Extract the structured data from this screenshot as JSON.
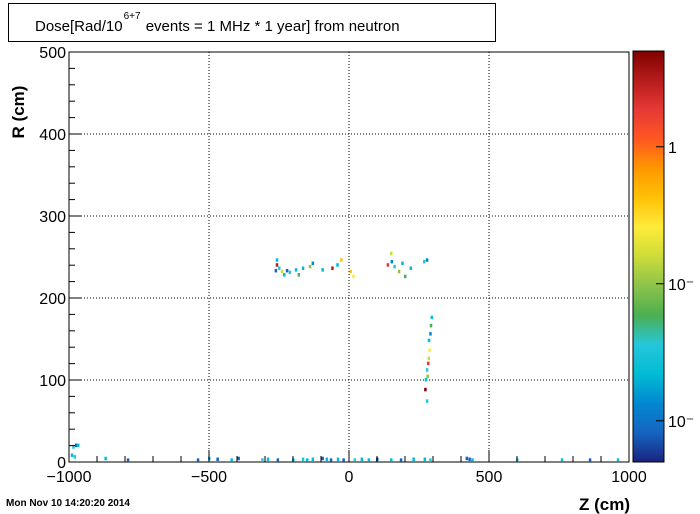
{
  "timestamp": "Mon Nov 10 14:20:20 2014",
  "chart_data": {
    "type": "heatmap",
    "title": {
      "before": "Dose[Rad/10",
      "superscript": "6+7",
      "after": " events = 1 MHz * 1 year] from neutron"
    },
    "xlabel": "Z (cm)",
    "ylabel": "R (cm)",
    "xlim": [
      -1000,
      1000
    ],
    "ylim": [
      0,
      500
    ],
    "x_ticks": [
      -1000,
      -500,
      0,
      500,
      1000
    ],
    "y_ticks": [
      0,
      100,
      200,
      300,
      400,
      500
    ],
    "grid": true,
    "z_scale": "log",
    "colorbar_labels": [
      "1",
      "10⁻",
      "10⁻"
    ],
    "colorbar_label_values": [
      1,
      0.1,
      0.01
    ],
    "palette": [
      "#1a237e",
      "#1565c0",
      "#0288d1",
      "#00bcd4",
      "#26c6da",
      "#4caf50",
      "#8bc34a",
      "#cddc39",
      "#ffeb3b",
      "#ffc107",
      "#ff9800",
      "#ff5722",
      "#e53935",
      "#b71c1c",
      "#7f0000"
    ],
    "cells": [
      {
        "z": -985,
        "r": 18,
        "v": 0.03
      },
      {
        "z": -975,
        "r": 20,
        "v": 0.01
      },
      {
        "z": -968,
        "r": 20,
        "v": 0.02
      },
      {
        "z": -990,
        "r": 8,
        "v": 0.02
      },
      {
        "z": -980,
        "r": 6,
        "v": 0.03
      },
      {
        "z": -870,
        "r": 4,
        "v": 0.02
      },
      {
        "z": -790,
        "r": 2,
        "v": 0.01
      },
      {
        "z": -540,
        "r": 2,
        "v": 0.01
      },
      {
        "z": -500,
        "r": 4,
        "v": 0.02
      },
      {
        "z": -470,
        "r": 3,
        "v": 0.01
      },
      {
        "z": -420,
        "r": 2,
        "v": 0.02
      },
      {
        "z": -395,
        "r": 4,
        "v": 0.01
      },
      {
        "z": -310,
        "r": 2,
        "v": 0.03
      },
      {
        "z": -290,
        "r": 3,
        "v": 0.02
      },
      {
        "z": -255,
        "r": 2,
        "v": 0.01
      },
      {
        "z": -200,
        "r": 2,
        "v": 0.02
      },
      {
        "z": -165,
        "r": 3,
        "v": 0.03
      },
      {
        "z": -150,
        "r": 2,
        "v": 0.02
      },
      {
        "z": -130,
        "r": 3,
        "v": 0.02
      },
      {
        "z": -95,
        "r": 4,
        "v": 0.01
      },
      {
        "z": -80,
        "r": 3,
        "v": 0.02
      },
      {
        "z": -65,
        "r": 2,
        "v": 0.01
      },
      {
        "z": -40,
        "r": 3,
        "v": 0.02
      },
      {
        "z": -20,
        "r": 2,
        "v": 0.01
      },
      {
        "z": 20,
        "r": 2,
        "v": 0.03
      },
      {
        "z": 45,
        "r": 3,
        "v": 0.02
      },
      {
        "z": 70,
        "r": 2,
        "v": 0.02
      },
      {
        "z": 100,
        "r": 3,
        "v": 0.01
      },
      {
        "z": 150,
        "r": 2,
        "v": 0.02
      },
      {
        "z": 185,
        "r": 2,
        "v": 0.01
      },
      {
        "z": 230,
        "r": 3,
        "v": 0.02
      },
      {
        "z": 270,
        "r": 3,
        "v": 0.02
      },
      {
        "z": 290,
        "r": 2,
        "v": 0.03
      },
      {
        "z": 420,
        "r": 4,
        "v": 0.01
      },
      {
        "z": 430,
        "r": 3,
        "v": 0.01
      },
      {
        "z": 440,
        "r": 2,
        "v": 0.02
      },
      {
        "z": 600,
        "r": 2,
        "v": 0.03
      },
      {
        "z": 760,
        "r": 2,
        "v": 0.02
      },
      {
        "z": 860,
        "r": 2,
        "v": 0.01
      },
      {
        "z": 960,
        "r": 2,
        "v": 0.02
      },
      {
        "z": -258,
        "r": 246,
        "v": 0.02
      },
      {
        "z": -258,
        "r": 240,
        "v": 3.0
      },
      {
        "z": -250,
        "r": 236,
        "v": 0.03
      },
      {
        "z": -262,
        "r": 233,
        "v": 0.01
      },
      {
        "z": -240,
        "r": 232,
        "v": 0.2
      },
      {
        "z": -232,
        "r": 228,
        "v": 0.02
      },
      {
        "z": -222,
        "r": 233,
        "v": 0.01
      },
      {
        "z": -212,
        "r": 231,
        "v": 0.03
      },
      {
        "z": -190,
        "r": 234,
        "v": 0.02
      },
      {
        "z": -180,
        "r": 228,
        "v": 0.05
      },
      {
        "z": -165,
        "r": 236,
        "v": 0.02
      },
      {
        "z": -140,
        "r": 238,
        "v": 0.1
      },
      {
        "z": -130,
        "r": 242,
        "v": 0.015
      },
      {
        "z": -95,
        "r": 234,
        "v": 0.02
      },
      {
        "z": -60,
        "r": 236,
        "v": 2.5
      },
      {
        "z": -42,
        "r": 240,
        "v": 0.02
      },
      {
        "z": -28,
        "r": 246,
        "v": 0.4
      },
      {
        "z": 5,
        "r": 232,
        "v": 0.5
      },
      {
        "z": 15,
        "r": 226,
        "v": 0.3
      },
      {
        "z": 138,
        "r": 240,
        "v": 1.8
      },
      {
        "z": 152,
        "r": 244,
        "v": 0.015
      },
      {
        "z": 150,
        "r": 254,
        "v": 0.15
      },
      {
        "z": 162,
        "r": 238,
        "v": 0.03
      },
      {
        "z": 178,
        "r": 232,
        "v": 0.1
      },
      {
        "z": 190,
        "r": 242,
        "v": 0.02
      },
      {
        "z": 200,
        "r": 226,
        "v": 0.05
      },
      {
        "z": 220,
        "r": 236,
        "v": 0.02
      },
      {
        "z": 268,
        "r": 244,
        "v": 0.03
      },
      {
        "z": 278,
        "r": 246,
        "v": 0.015
      },
      {
        "z": 295,
        "r": 176,
        "v": 0.02
      },
      {
        "z": 292,
        "r": 166,
        "v": 0.05
      },
      {
        "z": 290,
        "r": 156,
        "v": 0.015
      },
      {
        "z": 285,
        "r": 148,
        "v": 0.02
      },
      {
        "z": 287,
        "r": 136,
        "v": 0.3
      },
      {
        "z": 284,
        "r": 126,
        "v": 0.15
      },
      {
        "z": 282,
        "r": 120,
        "v": 1.5
      },
      {
        "z": 278,
        "r": 112,
        "v": 0.03
      },
      {
        "z": 280,
        "r": 104,
        "v": 0.08
      },
      {
        "z": 274,
        "r": 100,
        "v": 0.02
      },
      {
        "z": 272,
        "r": 88,
        "v": 4.0
      },
      {
        "z": 278,
        "r": 74,
        "v": 0.03
      }
    ]
  }
}
